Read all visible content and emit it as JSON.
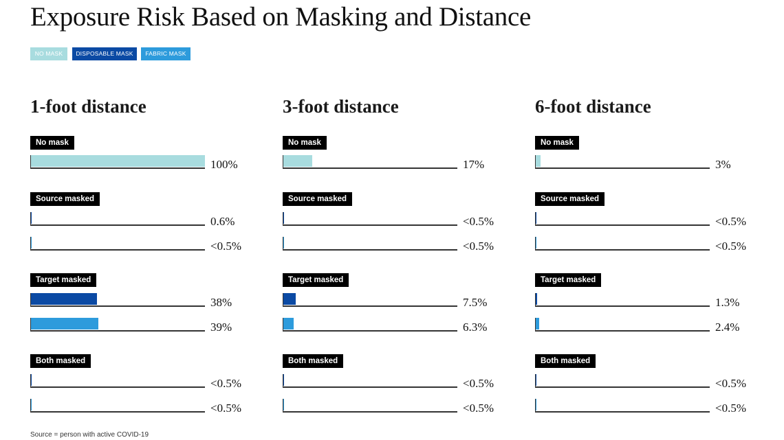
{
  "title": "Exposure Risk Based on Masking and Distance",
  "legend": [
    {
      "label": "NO MASK",
      "color": "#a8dcdf"
    },
    {
      "label": "DISPOSABLE MASK",
      "color": "#0b4aa4"
    },
    {
      "label": "FABRIC MASK",
      "color": "#2d9bdc"
    }
  ],
  "source_note": "Source = person with active COVID-19",
  "chart_data": [
    {
      "type": "bar",
      "title": "1-foot distance",
      "xlim": [
        0,
        100
      ],
      "groups": [
        {
          "label": "No mask",
          "bars": [
            {
              "series": "NO MASK",
              "value": 100,
              "label": "100%"
            }
          ]
        },
        {
          "label": "Source masked",
          "bars": [
            {
              "series": "DISPOSABLE MASK",
              "value": 0.6,
              "label": "0.6%"
            },
            {
              "series": "FABRIC MASK",
              "value": 0.5,
              "label": "<0.5%"
            }
          ]
        },
        {
          "label": "Target masked",
          "bars": [
            {
              "series": "DISPOSABLE MASK",
              "value": 38,
              "label": "38%"
            },
            {
              "series": "FABRIC MASK",
              "value": 39,
              "label": "39%"
            }
          ]
        },
        {
          "label": "Both masked",
          "bars": [
            {
              "series": "DISPOSABLE MASK",
              "value": 0.5,
              "label": "<0.5%"
            },
            {
              "series": "FABRIC MASK",
              "value": 0.5,
              "label": "<0.5%"
            }
          ]
        }
      ]
    },
    {
      "type": "bar",
      "title": "3-foot distance",
      "xlim": [
        0,
        100
      ],
      "groups": [
        {
          "label": "No mask",
          "bars": [
            {
              "series": "NO MASK",
              "value": 17,
              "label": "17%"
            }
          ]
        },
        {
          "label": "Source masked",
          "bars": [
            {
              "series": "DISPOSABLE MASK",
              "value": 0.5,
              "label": "<0.5%"
            },
            {
              "series": "FABRIC MASK",
              "value": 0.5,
              "label": "<0.5%"
            }
          ]
        },
        {
          "label": "Target masked",
          "bars": [
            {
              "series": "DISPOSABLE MASK",
              "value": 7.5,
              "label": "7.5%"
            },
            {
              "series": "FABRIC MASK",
              "value": 6.3,
              "label": "6.3%"
            }
          ]
        },
        {
          "label": "Both masked",
          "bars": [
            {
              "series": "DISPOSABLE MASK",
              "value": 0.5,
              "label": "<0.5%"
            },
            {
              "series": "FABRIC MASK",
              "value": 0.5,
              "label": "<0.5%"
            }
          ]
        }
      ]
    },
    {
      "type": "bar",
      "title": "6-foot distance",
      "xlim": [
        0,
        100
      ],
      "groups": [
        {
          "label": "No mask",
          "bars": [
            {
              "series": "NO MASK",
              "value": 3,
              "label": "3%"
            }
          ]
        },
        {
          "label": "Source masked",
          "bars": [
            {
              "series": "DISPOSABLE MASK",
              "value": 0.5,
              "label": "<0.5%"
            },
            {
              "series": "FABRIC MASK",
              "value": 0.5,
              "label": "<0.5%"
            }
          ]
        },
        {
          "label": "Target masked",
          "bars": [
            {
              "series": "DISPOSABLE MASK",
              "value": 1.3,
              "label": "1.3%"
            },
            {
              "series": "FABRIC MASK",
              "value": 2.4,
              "label": "2.4%"
            }
          ]
        },
        {
          "label": "Both masked",
          "bars": [
            {
              "series": "DISPOSABLE MASK",
              "value": 0.5,
              "label": "<0.5%"
            },
            {
              "series": "FABRIC MASK",
              "value": 0.5,
              "label": "<0.5%"
            }
          ]
        }
      ]
    }
  ]
}
